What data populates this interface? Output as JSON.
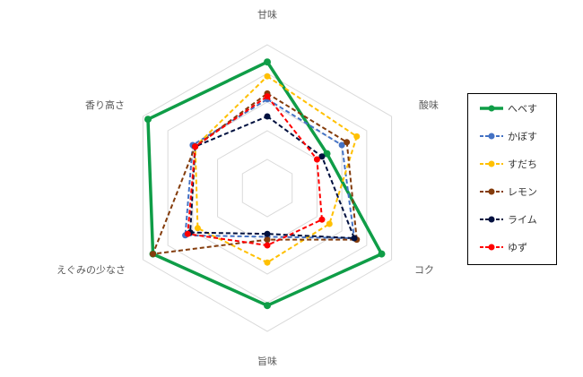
{
  "chart_data": {
    "type": "radar",
    "title": "",
    "axes": [
      "甘味",
      "酸味",
      "コク",
      "旨味",
      "えぐみの少なさ",
      "香り高さ"
    ],
    "rmax": 5,
    "rings": 5,
    "grid": true,
    "legend_position": "right",
    "series": [
      {
        "name": "へベす",
        "color": "#0f9d47",
        "dashed": false,
        "values": [
          4.4,
          2.4,
          4.6,
          4.1,
          4.6,
          4.8
        ]
      },
      {
        "name": "かぼす",
        "color": "#4472c4",
        "dashed": true,
        "values": [
          3.1,
          3.0,
          3.5,
          1.7,
          3.3,
          3.0
        ]
      },
      {
        "name": "すだち",
        "color": "#ffc000",
        "dashed": true,
        "values": [
          3.9,
          3.6,
          2.5,
          2.6,
          2.8,
          2.9
        ]
      },
      {
        "name": "レモン",
        "color": "#843c0c",
        "dashed": true,
        "values": [
          3.3,
          3.2,
          3.6,
          1.8,
          4.6,
          2.9
        ]
      },
      {
        "name": "ライム",
        "color": "#00103f",
        "dashed": true,
        "values": [
          2.5,
          2.2,
          3.5,
          1.6,
          3.1,
          2.9
        ]
      },
      {
        "name": "ゆず",
        "color": "#ff0000",
        "dashed": true,
        "values": [
          3.2,
          2.0,
          2.2,
          2.0,
          3.2,
          2.9
        ]
      }
    ]
  }
}
